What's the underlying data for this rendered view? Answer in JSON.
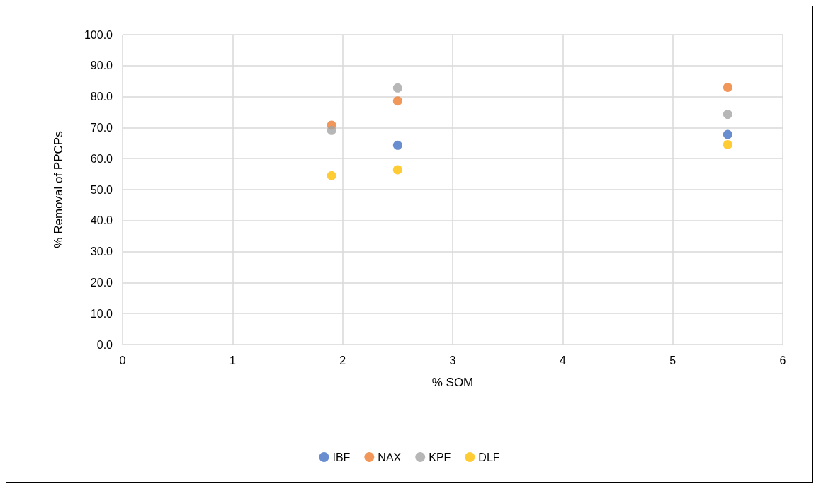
{
  "chart_data": {
    "type": "scatter",
    "xlabel": "% SOM",
    "ylabel": "% Removal of PPCPs",
    "xlim": [
      0,
      6
    ],
    "xticks": [
      0,
      1,
      2,
      3,
      4,
      5,
      6
    ],
    "ylim": [
      0,
      100
    ],
    "yticks": [
      {
        "value": 0,
        "label": "0.0"
      },
      {
        "value": 10,
        "label": "10.0"
      },
      {
        "value": 20,
        "label": "20.0"
      },
      {
        "value": 30,
        "label": "30.0"
      },
      {
        "value": 40,
        "label": "40.0"
      },
      {
        "value": 50,
        "label": "50.0"
      },
      {
        "value": 60,
        "label": "60.0"
      },
      {
        "value": 70,
        "label": "70.0"
      },
      {
        "value": 80,
        "label": "80.0"
      },
      {
        "value": 90,
        "label": "90.0"
      },
      {
        "value": 100,
        "label": "100.0"
      }
    ],
    "x": [
      1.9,
      2.5,
      5.5
    ],
    "series": [
      {
        "name": "IBF",
        "color": "#4472c4",
        "values": [
          null,
          64.3,
          67.8
        ]
      },
      {
        "name": "NAX",
        "color": "#ed7d31",
        "values": [
          70.8,
          78.6,
          83.0
        ]
      },
      {
        "name": "KPF",
        "color": "#a5a5a5",
        "values": [
          69.1,
          82.8,
          74.3
        ]
      },
      {
        "name": "DLF",
        "color": "#ffc000",
        "values": [
          54.5,
          56.4,
          64.5
        ]
      }
    ],
    "grid": true,
    "legend": "bottom",
    "marker": "circle"
  }
}
